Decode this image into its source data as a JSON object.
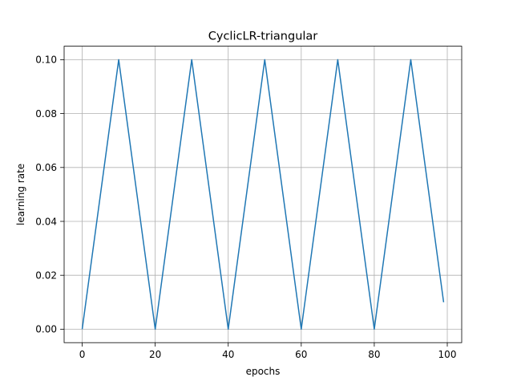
{
  "chart_data": {
    "type": "line",
    "title": "CyclicLR-triangular",
    "xlabel": "epochs",
    "ylabel": "learning rate",
    "xlim": [
      -4.95,
      103.95
    ],
    "ylim": [
      -0.005,
      0.105
    ],
    "xticks": [
      0,
      20,
      40,
      60,
      80,
      100
    ],
    "xtick_labels": [
      "0",
      "20",
      "40",
      "60",
      "80",
      "100"
    ],
    "yticks": [
      0.0,
      0.02,
      0.04,
      0.06,
      0.08,
      0.1
    ],
    "ytick_labels": [
      "0.00",
      "0.02",
      "0.04",
      "0.06",
      "0.08",
      "0.10"
    ],
    "grid": true,
    "legend": "none",
    "series": [
      {
        "color": "#1f77b4",
        "x": [
          0,
          10,
          20,
          30,
          40,
          50,
          60,
          70,
          80,
          90,
          99
        ],
        "y": [
          0.0,
          0.1,
          0.0,
          0.1,
          0.0,
          0.1,
          0.0,
          0.1,
          0.0,
          0.1,
          0.01
        ]
      }
    ]
  }
}
